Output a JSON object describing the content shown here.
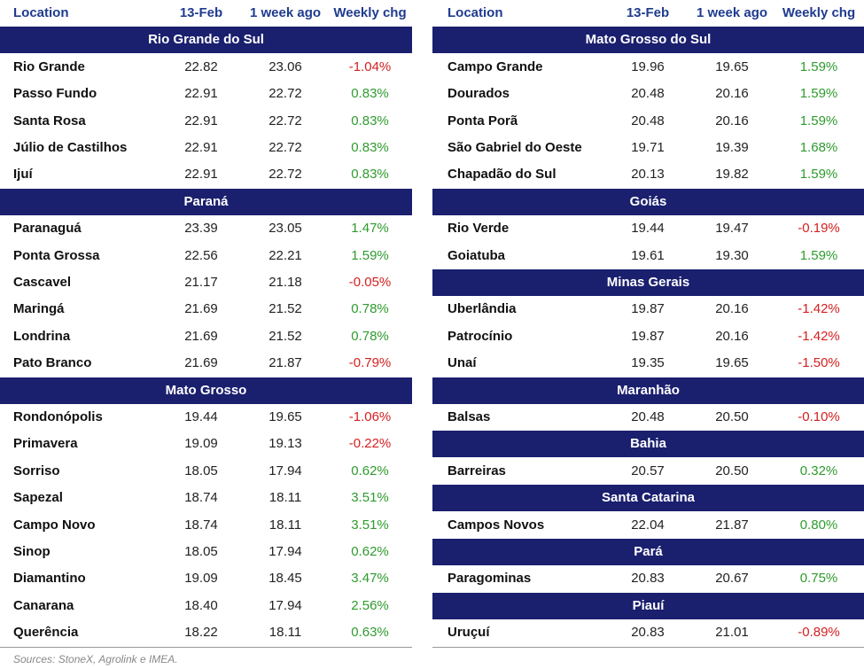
{
  "tables": [
    {
      "columns": [
        "Location",
        "13-Feb",
        "1 week ago",
        "Weekly chg"
      ],
      "groups": [
        {
          "region": "Rio Grande do Sul",
          "rows": [
            [
              "Rio Grande",
              "22.82",
              "23.06",
              "-1.04%"
            ],
            [
              "Passo Fundo",
              "22.91",
              "22.72",
              "0.83%"
            ],
            [
              "Santa Rosa",
              "22.91",
              "22.72",
              "0.83%"
            ],
            [
              "Júlio de Castilhos",
              "22.91",
              "22.72",
              "0.83%"
            ],
            [
              "Ijuí",
              "22.91",
              "22.72",
              "0.83%"
            ]
          ]
        },
        {
          "region": "Paraná",
          "rows": [
            [
              "Paranaguá",
              "23.39",
              "23.05",
              "1.47%"
            ],
            [
              "Ponta Grossa",
              "22.56",
              "22.21",
              "1.59%"
            ],
            [
              "Cascavel",
              "21.17",
              "21.18",
              "-0.05%"
            ],
            [
              "Maringá",
              "21.69",
              "21.52",
              "0.78%"
            ],
            [
              "Londrina",
              "21.69",
              "21.52",
              "0.78%"
            ],
            [
              "Pato Branco",
              "21.69",
              "21.87",
              "-0.79%"
            ]
          ]
        },
        {
          "region": "Mato Grosso",
          "rows": [
            [
              "Rondonópolis",
              "19.44",
              "19.65",
              "-1.06%"
            ],
            [
              "Primavera",
              "19.09",
              "19.13",
              "-0.22%"
            ],
            [
              "Sorriso",
              "18.05",
              "17.94",
              "0.62%"
            ],
            [
              "Sapezal",
              "18.74",
              "18.11",
              "3.51%"
            ],
            [
              "Campo Novo",
              "18.74",
              "18.11",
              "3.51%"
            ],
            [
              "Sinop",
              "18.05",
              "17.94",
              "0.62%"
            ],
            [
              "Diamantino",
              "19.09",
              "18.45",
              "3.47%"
            ],
            [
              "Canarana",
              "18.40",
              "17.94",
              "2.56%"
            ],
            [
              "Querência",
              "18.22",
              "18.11",
              "0.63%"
            ]
          ]
        }
      ]
    },
    {
      "columns": [
        "Location",
        "13-Feb",
        "1 week ago",
        "Weekly chg"
      ],
      "groups": [
        {
          "region": "Mato Grosso do Sul",
          "rows": [
            [
              "Campo Grande",
              "19.96",
              "19.65",
              "1.59%"
            ],
            [
              "Dourados",
              "20.48",
              "20.16",
              "1.59%"
            ],
            [
              "Ponta Porã",
              "20.48",
              "20.16",
              "1.59%"
            ],
            [
              "São Gabriel do Oeste",
              "19.71",
              "19.39",
              "1.68%"
            ],
            [
              "Chapadão do Sul",
              "20.13",
              "19.82",
              "1.59%"
            ]
          ]
        },
        {
          "region": "Goiás",
          "rows": [
            [
              "Rio Verde",
              "19.44",
              "19.47",
              "-0.19%"
            ],
            [
              "Goiatuba",
              "19.61",
              "19.30",
              "1.59%"
            ]
          ]
        },
        {
          "region": "Minas Gerais",
          "rows": [
            [
              "Uberlândia",
              "19.87",
              "20.16",
              "-1.42%"
            ],
            [
              "Patrocínio",
              "19.87",
              "20.16",
              "-1.42%"
            ],
            [
              "Unaí",
              "19.35",
              "19.65",
              "-1.50%"
            ]
          ]
        },
        {
          "region": "Maranhão",
          "rows": [
            [
              "Balsas",
              "20.48",
              "20.50",
              "-0.10%"
            ]
          ]
        },
        {
          "region": "Bahia",
          "rows": [
            [
              "Barreiras",
              "20.57",
              "20.50",
              "0.32%"
            ]
          ]
        },
        {
          "region": "Santa Catarina",
          "rows": [
            [
              "Campos Novos",
              "22.04",
              "21.87",
              "0.80%"
            ]
          ]
        },
        {
          "region": "Pará",
          "rows": [
            [
              "Paragominas",
              "20.83",
              "20.67",
              "0.75%"
            ]
          ]
        },
        {
          "region": "Piauí",
          "rows": [
            [
              "Uruçuí",
              "20.83",
              "21.01",
              "-0.89%"
            ]
          ]
        }
      ]
    }
  ],
  "source": "Sources: StoneX, Agrolink e IMEA."
}
